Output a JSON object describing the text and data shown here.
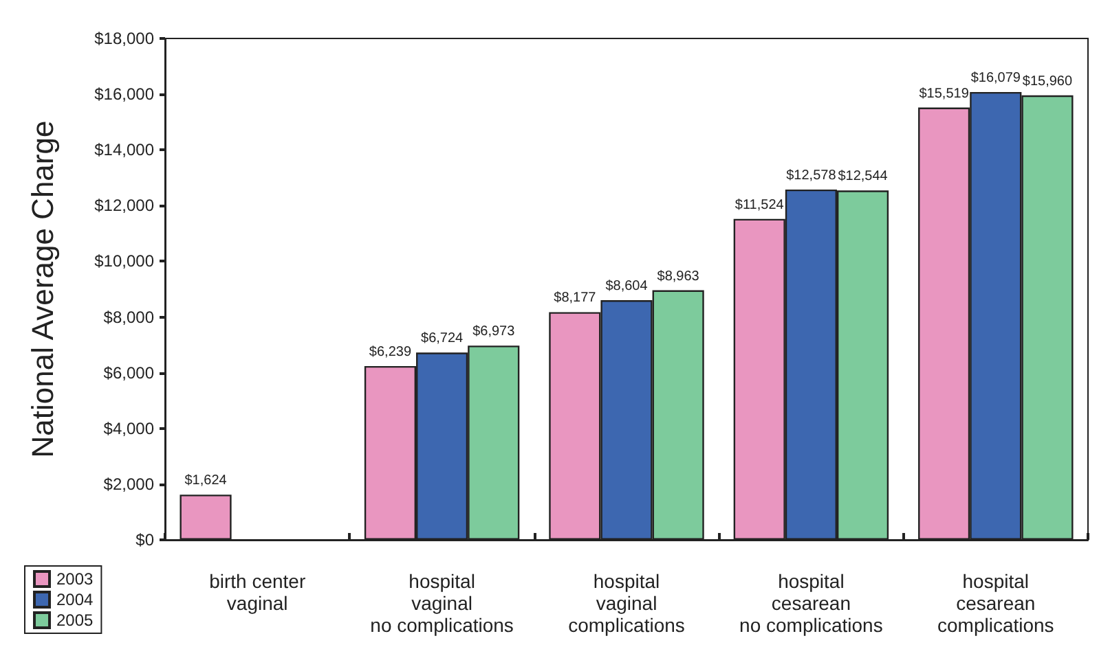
{
  "chart_data": {
    "type": "bar",
    "ylabel": "National Average Charge",
    "categories": [
      "birth center\nvaginal",
      "hospital\nvaginal\nno complications",
      "hospital\nvaginal\ncomplications",
      "hospital\ncesarean\nno complications",
      "hospital\ncesarean\ncomplications"
    ],
    "series": [
      {
        "name": "2003",
        "color": "#e996c0",
        "values": [
          1624,
          6239,
          8177,
          11524,
          15519
        ],
        "value_labels": [
          "$1,624",
          "$6,239",
          "$8,177",
          "$11,524",
          "$15,519"
        ]
      },
      {
        "name": "2004",
        "color": "#3d67b0",
        "values": [
          null,
          6724,
          8604,
          12578,
          16079
        ],
        "value_labels": [
          null,
          "$6,724",
          "$8,604",
          "$12,578",
          "$16,079"
        ]
      },
      {
        "name": "2005",
        "color": "#7dcb9c",
        "values": [
          null,
          6973,
          8963,
          12544,
          15960
        ],
        "value_labels": [
          null,
          "$6,973",
          "$8,963",
          "$12,544",
          "$15,960"
        ]
      }
    ],
    "ylim": [
      0,
      18000
    ],
    "yticks": [
      {
        "value": 0,
        "label": "$0"
      },
      {
        "value": 2000,
        "label": "$2,000"
      },
      {
        "value": 4000,
        "label": "$4,000"
      },
      {
        "value": 6000,
        "label": "$6,000"
      },
      {
        "value": 8000,
        "label": "$8,000"
      },
      {
        "value": 10000,
        "label": "$10,000"
      },
      {
        "value": 12000,
        "label": "$12,000"
      },
      {
        "value": 14000,
        "label": "$14,000"
      },
      {
        "value": 16000,
        "label": "$16,000"
      },
      {
        "value": 18000,
        "label": "$18,000"
      }
    ],
    "grid": false,
    "legend": "bottom left"
  }
}
